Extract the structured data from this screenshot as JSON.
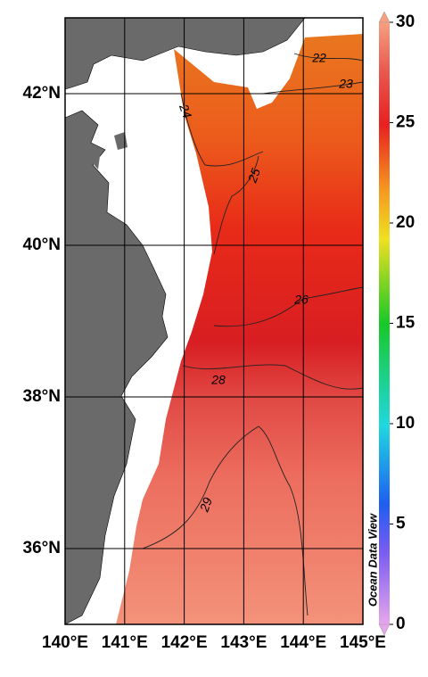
{
  "map": {
    "xlim": [
      140,
      145
    ],
    "ylim": [
      35,
      43
    ],
    "lon_ticks": [
      {
        "value": 140,
        "label": "140°E"
      },
      {
        "value": 141,
        "label": "141°E"
      },
      {
        "value": 142,
        "label": "142°E"
      },
      {
        "value": 143,
        "label": "143°E"
      },
      {
        "value": 144,
        "label": "144°E"
      },
      {
        "value": 145,
        "label": "145°E"
      }
    ],
    "lat_ticks": [
      {
        "value": 36,
        "label": "36°N"
      },
      {
        "value": 38,
        "label": "38°N"
      },
      {
        "value": 40,
        "label": "40°N"
      },
      {
        "value": 42,
        "label": "42°N"
      }
    ],
    "colorbar": {
      "lim": [
        0,
        30
      ],
      "ticks": [
        0,
        5,
        10,
        15,
        20,
        25,
        30
      ]
    },
    "contour_labels": [
      22,
      23,
      24,
      25,
      26,
      28,
      29
    ],
    "watermark": "Ocean Data View"
  }
}
